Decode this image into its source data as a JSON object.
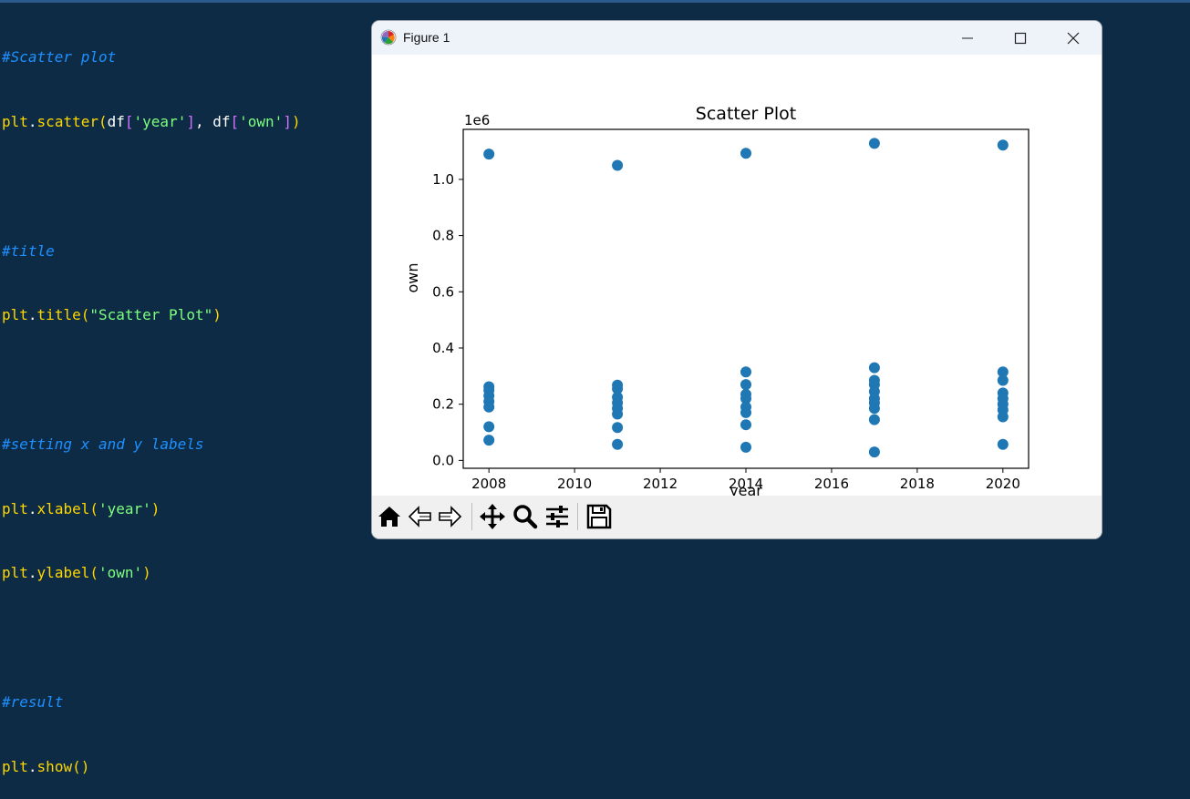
{
  "editor": {
    "lines": [
      {
        "comment": "#Scatter plot"
      },
      {
        "plt": "plt",
        "dot": ".",
        "func": "scatter",
        "p1": "(",
        "df1": "df",
        "b1o": "[",
        "str1": "'year'",
        "b1c": "]",
        "comma": ", ",
        "df2": "df",
        "b2o": "[",
        "str2": "'own'",
        "b2c": "]",
        "p2": ")"
      },
      {
        "blank": ""
      },
      {
        "comment": "#title"
      },
      {
        "plt": "plt",
        "dot": ".",
        "func": "title",
        "p1": "(",
        "str": "\"Scatter Plot\"",
        "p2": ")"
      },
      {
        "blank": ""
      },
      {
        "comment": "#setting x and y labels"
      },
      {
        "plt": "plt",
        "dot": ".",
        "func": "xlabel",
        "p1": "(",
        "str": "'year'",
        "p2": ")"
      },
      {
        "plt": "plt",
        "dot": ".",
        "func": "ylabel",
        "p1": "(",
        "str": "'own'",
        "p2": ")"
      },
      {
        "blank": ""
      },
      {
        "comment": "#result"
      },
      {
        "plt": "plt",
        "dot": ".",
        "func": "show",
        "p1": "(",
        "p2": ")"
      }
    ]
  },
  "window": {
    "title": "Figure 1",
    "icons": [
      "matplotlib-icon",
      "minimize-icon",
      "maximize-icon",
      "close-icon"
    ]
  },
  "toolbar": {
    "buttons": [
      "home-icon",
      "back-icon",
      "forward-icon",
      "pan-icon",
      "zoom-icon",
      "configure-subplots-icon",
      "save-icon"
    ]
  },
  "colors": {
    "background": "#0d2b45",
    "marker": "#1f77b4",
    "comment": "#1e90ff",
    "keyword": "#ffd700",
    "string": "#7dff7d",
    "bracket": "#d070ff"
  },
  "chart_data": {
    "type": "scatter",
    "title": "Scatter Plot",
    "xlabel": "year",
    "ylabel": "own",
    "offset_label": "1e6",
    "xlim": [
      2007.4,
      2020.6
    ],
    "ylim": [
      -0.028,
      1.178
    ],
    "xticks": [
      2008,
      2010,
      2012,
      2014,
      2016,
      2018,
      2020
    ],
    "xtick_labels": [
      "2008",
      "2010",
      "2012",
      "2014",
      "2016",
      "2018",
      "2020"
    ],
    "yticks": [
      0.0,
      0.2,
      0.4,
      0.6,
      0.8,
      1.0
    ],
    "ytick_labels": [
      "0.0",
      "0.2",
      "0.4",
      "0.6",
      "0.8",
      "1.0"
    ],
    "grid": false,
    "marker_color": "#1f77b4",
    "points": [
      {
        "x": 2008,
        "y": 1.09
      },
      {
        "x": 2008,
        "y": 0.262
      },
      {
        "x": 2008,
        "y": 0.25
      },
      {
        "x": 2008,
        "y": 0.23
      },
      {
        "x": 2008,
        "y": 0.21
      },
      {
        "x": 2008,
        "y": 0.19
      },
      {
        "x": 2008,
        "y": 0.12
      },
      {
        "x": 2008,
        "y": 0.072
      },
      {
        "x": 2011,
        "y": 1.05
      },
      {
        "x": 2011,
        "y": 0.268
      },
      {
        "x": 2011,
        "y": 0.255
      },
      {
        "x": 2011,
        "y": 0.225
      },
      {
        "x": 2011,
        "y": 0.205
      },
      {
        "x": 2011,
        "y": 0.185
      },
      {
        "x": 2011,
        "y": 0.165
      },
      {
        "x": 2011,
        "y": 0.117
      },
      {
        "x": 2011,
        "y": 0.057
      },
      {
        "x": 2014,
        "y": 1.093
      },
      {
        "x": 2014,
        "y": 0.315
      },
      {
        "x": 2014,
        "y": 0.27
      },
      {
        "x": 2014,
        "y": 0.235
      },
      {
        "x": 2014,
        "y": 0.22
      },
      {
        "x": 2014,
        "y": 0.19
      },
      {
        "x": 2014,
        "y": 0.17
      },
      {
        "x": 2014,
        "y": 0.127
      },
      {
        "x": 2014,
        "y": 0.047
      },
      {
        "x": 2017,
        "y": 1.128
      },
      {
        "x": 2017,
        "y": 0.33
      },
      {
        "x": 2017,
        "y": 0.285
      },
      {
        "x": 2017,
        "y": 0.27
      },
      {
        "x": 2017,
        "y": 0.245
      },
      {
        "x": 2017,
        "y": 0.22
      },
      {
        "x": 2017,
        "y": 0.205
      },
      {
        "x": 2017,
        "y": 0.185
      },
      {
        "x": 2017,
        "y": 0.145
      },
      {
        "x": 2017,
        "y": 0.03
      },
      {
        "x": 2020,
        "y": 1.122
      },
      {
        "x": 2020,
        "y": 0.315
      },
      {
        "x": 2020,
        "y": 0.285
      },
      {
        "x": 2020,
        "y": 0.24
      },
      {
        "x": 2020,
        "y": 0.22
      },
      {
        "x": 2020,
        "y": 0.2
      },
      {
        "x": 2020,
        "y": 0.18
      },
      {
        "x": 2020,
        "y": 0.155
      },
      {
        "x": 2020,
        "y": 0.057
      }
    ]
  }
}
